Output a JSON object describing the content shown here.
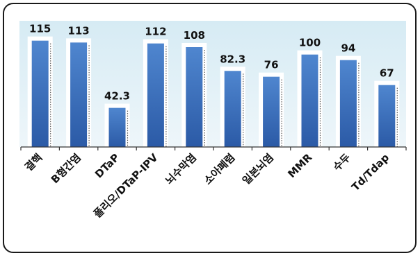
{
  "chart_data": {
    "type": "bar",
    "categories": [
      "결핵",
      "B형간염",
      "DTaP",
      "폴리오/DTaP-IPV",
      "뇌수막염",
      "소아폐렴",
      "일본뇌염",
      "MMR",
      "수두",
      "Td/Tdap"
    ],
    "values": [
      115,
      113,
      42.3,
      112,
      108,
      82.3,
      76,
      100,
      94,
      67
    ],
    "value_labels": [
      "115",
      "113",
      "42.3",
      "112",
      "108",
      "82.3",
      "76",
      "100",
      "94",
      "67"
    ],
    "title": "",
    "xlabel": "",
    "ylabel": "",
    "ylim": [
      0,
      120
    ],
    "grid": false,
    "legend": "none",
    "colors": {
      "bar_top": "#4f86cf",
      "bar_bottom": "#2b5aa6",
      "plot_background": "#ddeef6",
      "frame_border": "#1a1a1a",
      "bar_halo": "#ffffff"
    }
  }
}
